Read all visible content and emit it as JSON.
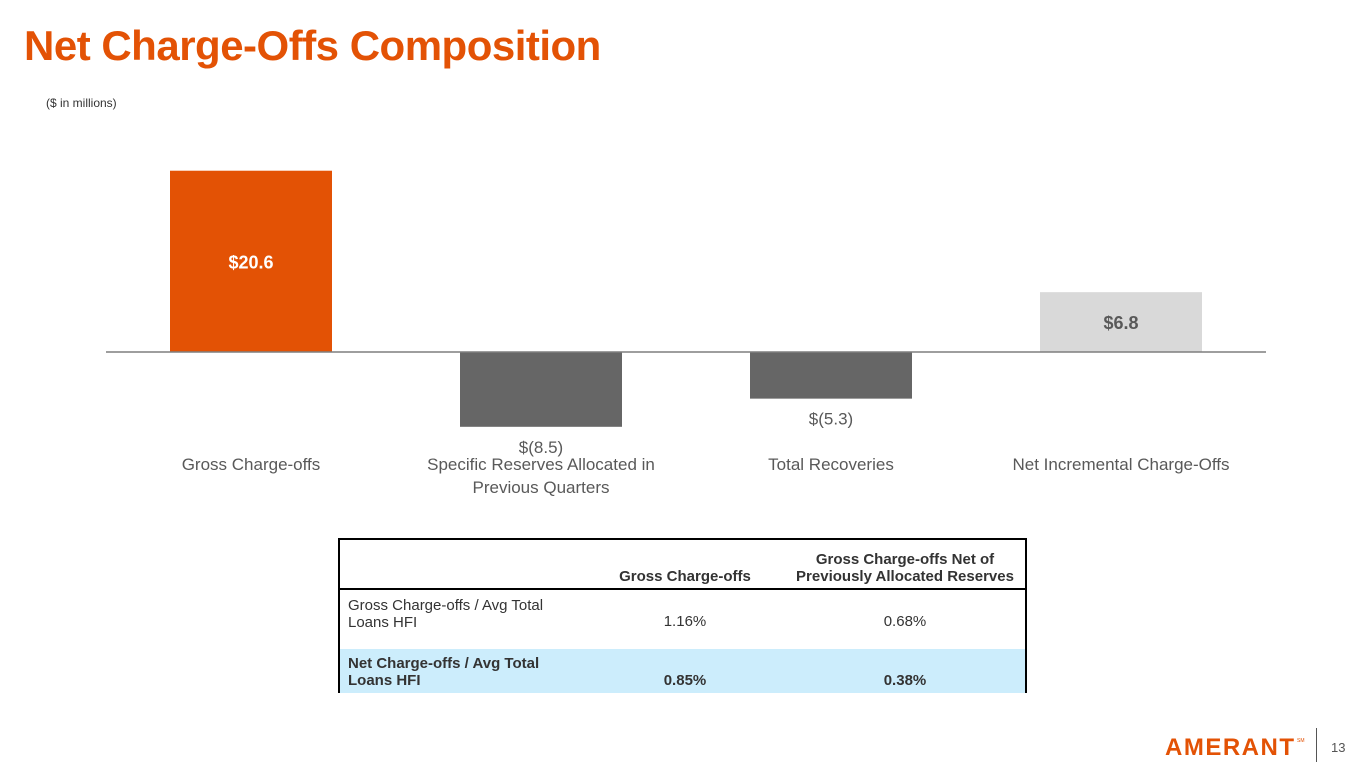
{
  "page": {
    "title": "Net Charge-Offs Composition",
    "subtitle": "($ in millions)",
    "page_number": "13",
    "logo_text": "AMERANT",
    "logo_mark": "SM"
  },
  "colors": {
    "accent": "#E35205",
    "negative_bar": "#666666",
    "net_bar": "#D9D9D9",
    "highlight_row": "#CCEDFC"
  },
  "chart_data": {
    "type": "bar",
    "title": "",
    "xlabel": "",
    "ylabel": "",
    "ylim": [
      -10,
      22
    ],
    "grid": false,
    "categories": [
      "Gross Charge-offs",
      "Specific Reserves Allocated in Previous Quarters",
      "Total Recoveries",
      "Net Incremental Charge-Offs"
    ],
    "category_label_lines": [
      [
        "Gross Charge-offs"
      ],
      [
        "Specific Reserves Allocated in",
        "Previous Quarters"
      ],
      [
        "Total Recoveries"
      ],
      [
        "Net Incremental Charge-Offs"
      ]
    ],
    "values": [
      20.6,
      -8.5,
      -5.3,
      6.8
    ],
    "data_labels": [
      "$20.6",
      "$(8.5)",
      "$(5.3)",
      "$6.8"
    ],
    "bar_colors": [
      "#E35205",
      "#666666",
      "#666666",
      "#D9D9D9"
    ],
    "label_colors": [
      "#FFFFFF",
      "#595959",
      "#595959",
      "#595959"
    ]
  },
  "table": {
    "header_blank": "",
    "col1": "Gross Charge-offs",
    "col2_line1": "Gross Charge-offs Net of",
    "col2_line2": "Previously Allocated Reserves",
    "rows": [
      {
        "label_line1": "Gross Charge-offs / Avg Total",
        "label_line2": "Loans HFI",
        "v1": "1.16%",
        "v2": "0.68%"
      },
      {
        "label_line1": "Net Charge-offs / Avg Total",
        "label_line2": "Loans HFI",
        "v1": "0.85%",
        "v2": "0.38%"
      }
    ]
  }
}
